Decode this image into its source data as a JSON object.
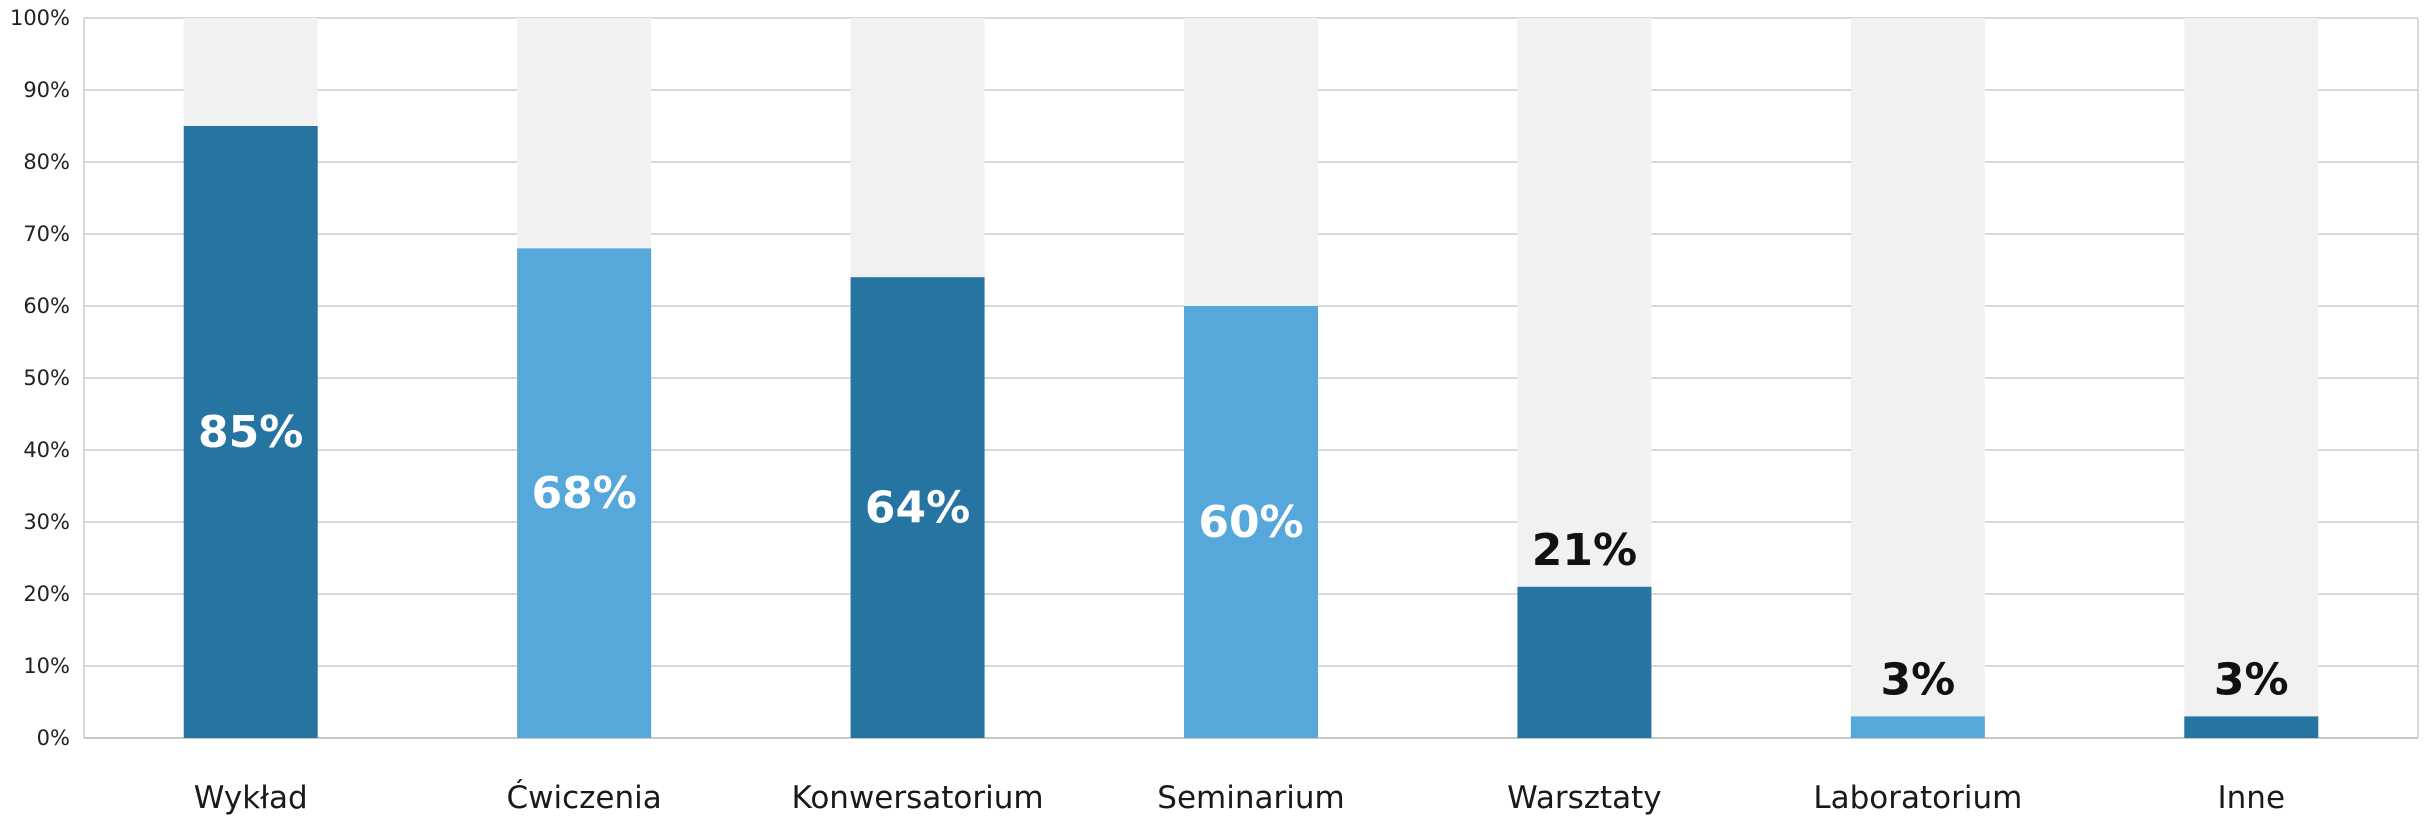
{
  "chart_data": {
    "type": "bar",
    "title": "",
    "xlabel": "",
    "ylabel": "",
    "ylim": [
      0,
      100
    ],
    "y_ticks": [
      "0%",
      "10%",
      "20%",
      "30%",
      "40%",
      "50%",
      "60%",
      "70%",
      "80%",
      "90%",
      "100%"
    ],
    "grid": true,
    "background_bars": true,
    "categories": [
      "Wykład",
      "Ćwiczenia",
      "Konwersatorium",
      "Seminarium",
      "Warsztaty",
      "Laboratorium",
      "Inne"
    ],
    "values": [
      85,
      68,
      64,
      60,
      21,
      3,
      3
    ],
    "data_labels": [
      "85%",
      "68%",
      "64%",
      "60%",
      "21%",
      "3%",
      "3%"
    ],
    "bar_colors": [
      "#2574a1",
      "#55a8d9",
      "#2574a1",
      "#55a8d9",
      "#2574a1",
      "#55a8d9",
      "#2574a1"
    ],
    "background_bar_color": "#f1f1f1",
    "grid_color": "#d9d9d9",
    "label_inside_color": "#ffffff",
    "label_outside_color": "#111111"
  }
}
